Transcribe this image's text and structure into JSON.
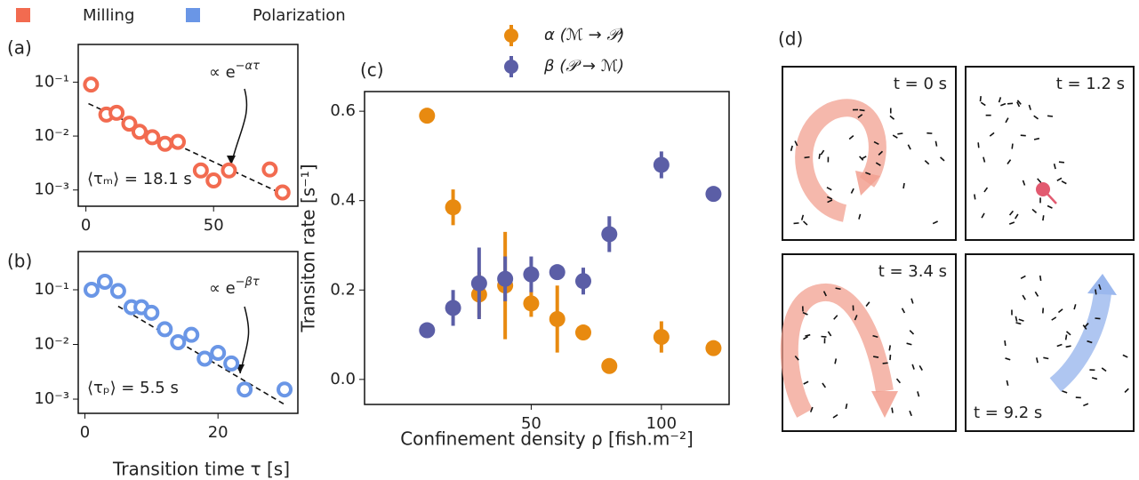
{
  "chart_data": [
    {
      "type": "scatter",
      "panel_label": "(a)",
      "log_y": true,
      "series": [
        {
          "name": "Milling",
          "color": "#f26b50",
          "x": [
            2,
            8,
            12,
            17,
            21,
            26,
            31,
            36,
            45,
            50,
            56,
            72,
            77
          ],
          "values": [
            0.09,
            0.025,
            0.027,
            0.017,
            0.012,
            0.0095,
            0.0072,
            0.0078,
            0.0023,
            0.0015,
            0.0023,
            0.0024,
            0.0009
          ]
        }
      ],
      "fit": {
        "x": [
          1,
          78
        ],
        "values": [
          0.04,
          0.0008
        ]
      },
      "fit_label": {
        "base": "∝ e",
        "exponent": "−ατ"
      },
      "mean_label": "⟨τₘ⟩ = 18.1 s",
      "xlim": [
        -3,
        83
      ],
      "xticks": [
        0,
        50
      ],
      "ylim": [
        0.0005,
        0.5
      ],
      "yticks": [
        {
          "value": 0.1,
          "label": "10⁻¹"
        },
        {
          "value": 0.01,
          "label": "10⁻²"
        },
        {
          "value": 0.001,
          "label": "10⁻³"
        }
      ]
    },
    {
      "type": "scatter",
      "panel_label": "(b)",
      "log_y": true,
      "series": [
        {
          "name": "Polarization",
          "color": "#6a96e6",
          "x": [
            1,
            3,
            5,
            7,
            8.5,
            10,
            12,
            14,
            16,
            18,
            20,
            22,
            24,
            30
          ],
          "values": [
            0.1,
            0.14,
            0.095,
            0.048,
            0.048,
            0.038,
            0.019,
            0.011,
            0.015,
            0.0055,
            0.007,
            0.0045,
            0.0015,
            0.0015
          ]
        }
      ],
      "fit": {
        "x": [
          5,
          30
        ],
        "values": [
          0.05,
          0.0008
        ]
      },
      "fit_label": {
        "base": "∝ e",
        "exponent": "−βτ"
      },
      "mean_label": "⟨τₚ⟩ = 5.5 s",
      "x_label": "Transition time τ [s]",
      "xlim": [
        -1,
        32
      ],
      "xticks": [
        0,
        20
      ],
      "ylim": [
        0.00055,
        0.5
      ],
      "yticks": [
        {
          "value": 0.1,
          "label": "10⁻¹"
        },
        {
          "value": 0.01,
          "label": "10⁻²"
        },
        {
          "value": 0.001,
          "label": "10⁻³"
        }
      ]
    },
    {
      "type": "errorbar",
      "panel_label": "(c)",
      "x_label": "Confinement density ρ [fish.m⁻²]",
      "y_label": "Transiton rate [s⁻¹]",
      "series": [
        {
          "name": "α (ℳ → 𝒫)",
          "color": "#e88a10",
          "x": [
            10,
            20,
            30,
            40,
            50,
            60,
            70,
            80,
            100,
            120
          ],
          "values": [
            0.59,
            0.385,
            0.19,
            0.21,
            0.17,
            0.135,
            0.105,
            0.03,
            0.095,
            0.07
          ],
          "errors": [
            null,
            0.04,
            0.05,
            0.12,
            0.03,
            0.075,
            null,
            null,
            0.035,
            null
          ]
        },
        {
          "name": "β (𝒫 → ℳ)",
          "color": "#5b5ea6",
          "x": [
            10,
            20,
            30,
            40,
            50,
            60,
            70,
            80,
            100,
            120
          ],
          "values": [
            0.11,
            0.16,
            0.215,
            0.225,
            0.235,
            0.24,
            0.22,
            0.325,
            0.48,
            0.415
          ],
          "errors": [
            null,
            0.04,
            0.08,
            0.05,
            0.04,
            null,
            0.03,
            0.04,
            0.03,
            null
          ]
        }
      ],
      "xlim": [
        -14,
        126
      ],
      "xticks": [
        50,
        100
      ],
      "ylim": [
        -0.056,
        0.644
      ],
      "yticks": [
        {
          "value": 0,
          "label": "0.0"
        },
        {
          "value": 0.2,
          "label": "0.2"
        },
        {
          "value": 0.4,
          "label": "0.4"
        },
        {
          "value": 0.6,
          "label": "0.6"
        }
      ]
    }
  ],
  "snapshots": {
    "panel_label": "(d)",
    "frames": [
      {
        "label": "t = 0 s"
      },
      {
        "label": "t = 1.2 s"
      },
      {
        "label": "t = 3.4 s"
      },
      {
        "label": "t = 9.2 s"
      }
    ]
  }
}
